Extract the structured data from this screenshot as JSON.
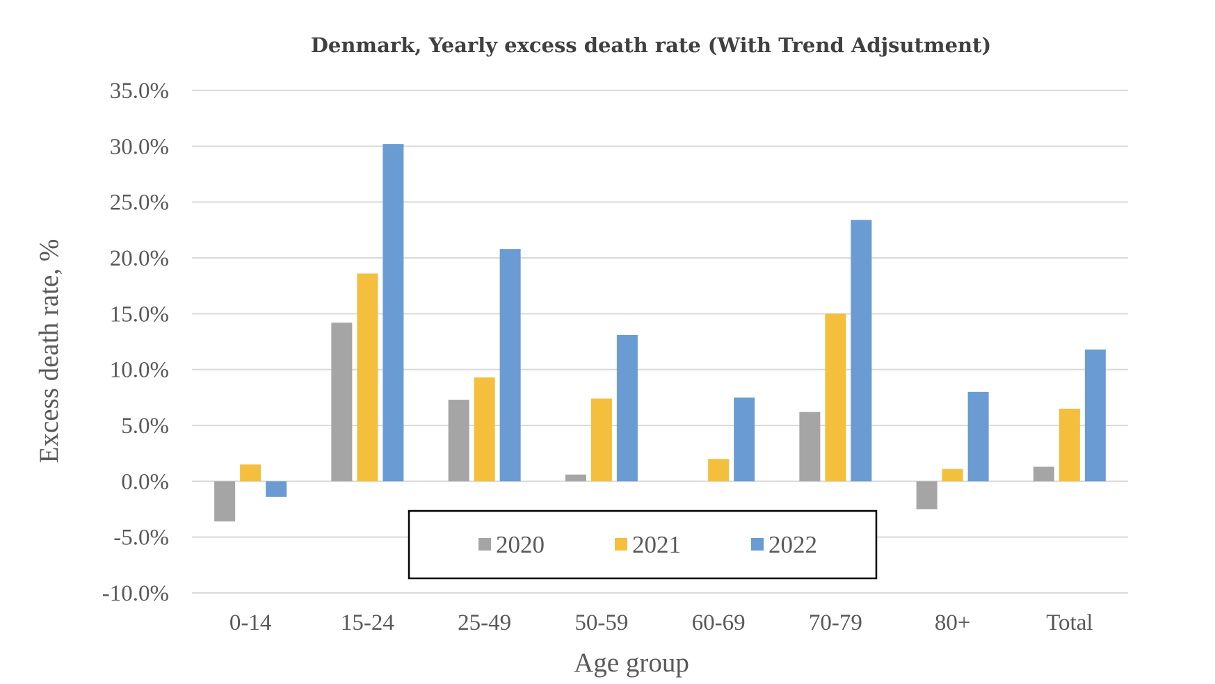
{
  "chart_data": {
    "type": "bar",
    "title": "Denmark, Yearly excess death rate (With Trend Adjsutment)",
    "xlabel": "Age group",
    "ylabel": "Excess death rate, %",
    "categories": [
      "0-14",
      "15-24",
      "25-49",
      "50-59",
      "60-69",
      "70-79",
      "80+",
      "Total"
    ],
    "ylim": [
      -10,
      35
    ],
    "yticks": [
      35,
      30,
      25,
      20,
      15,
      10,
      5,
      0,
      -5,
      -10
    ],
    "ytick_labels": [
      "35.0%",
      "30.0%",
      "25.0%",
      "20.0%",
      "15.0%",
      "10.0%",
      "5.0%",
      "0.0%",
      "-5.0%",
      "-10.0%"
    ],
    "grid": true,
    "legend_position": "bottom-center, inside plot area",
    "series": [
      {
        "name": "2020",
        "color": "#a5a5a5",
        "values": [
          -3.6,
          14.2,
          7.3,
          0.6,
          0.0,
          6.2,
          -2.5,
          1.3
        ]
      },
      {
        "name": "2021",
        "color": "#f4bf3c",
        "values": [
          1.5,
          18.6,
          9.3,
          7.4,
          2.0,
          15.0,
          1.1,
          6.5
        ]
      },
      {
        "name": "2022",
        "color": "#6a9bd3",
        "values": [
          -1.4,
          30.2,
          20.8,
          13.1,
          7.5,
          23.4,
          8.0,
          11.8
        ]
      }
    ]
  }
}
